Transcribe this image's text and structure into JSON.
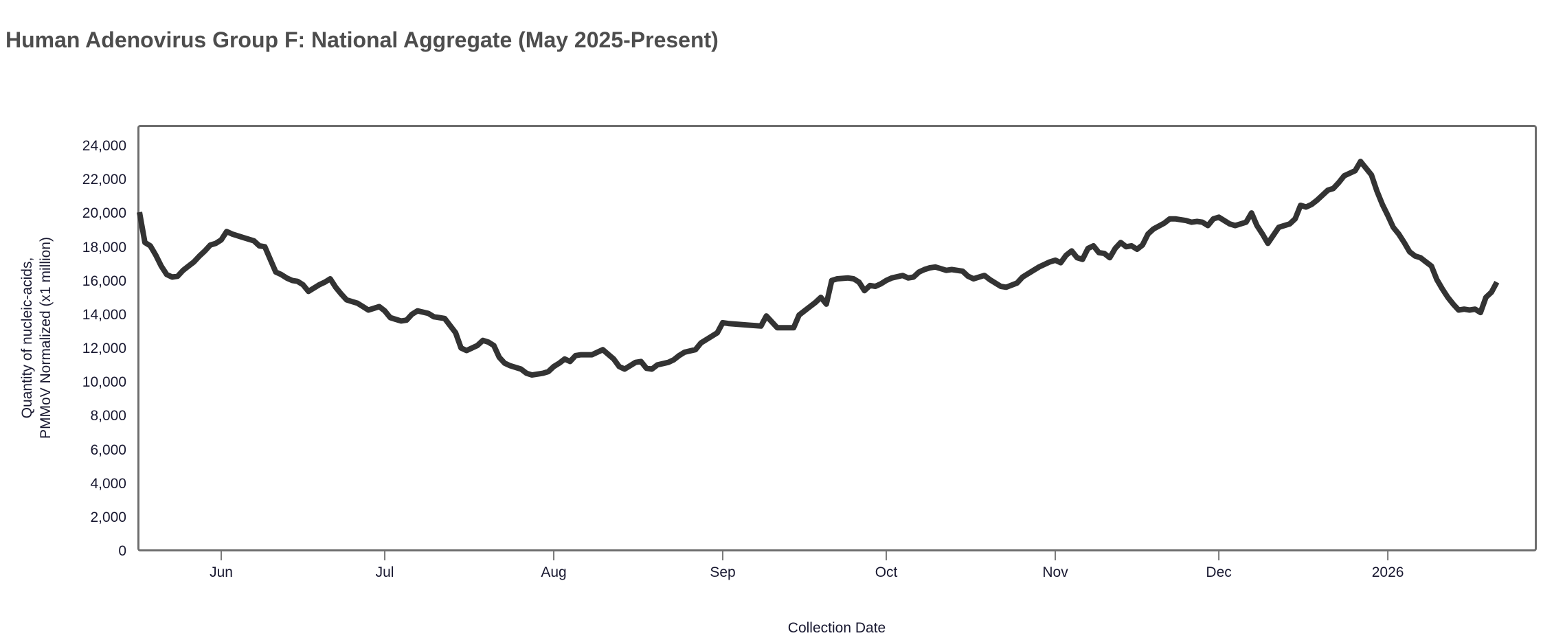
{
  "page": {
    "background_color": "#ffffff",
    "title": "Human Adenovirus Group F: National Aggregate (May 2025-Present)",
    "title_color": "#4d4d4d"
  },
  "chart_data": {
    "type": "line",
    "title": "Human Adenovirus Group F: National Aggregate (May 2025-Present)",
    "xlabel": "Collection Date",
    "ylabel": "Quantity of nucleic-acids, PMMoV Normalized (x1 million)",
    "ylabel_line1": "Quantity of nucleic-acids,",
    "ylabel_line2": "PMMoV Normalized (x1 million)",
    "legend": false,
    "grid": false,
    "ylim": [
      0,
      25300
    ],
    "x_range": [
      "2025-05-17",
      "2026-01-28"
    ],
    "line_color": "#333333",
    "frame_color": "#6e6e6e",
    "tick_text_color": "#181830",
    "tick_mark_color": "#7a7a7a",
    "y_ticks": [
      {
        "label": "0",
        "value": 0
      },
      {
        "label": "2,000",
        "value": 2000
      },
      {
        "label": "4,000",
        "value": 4000
      },
      {
        "label": "6,000",
        "value": 6000
      },
      {
        "label": "8,000",
        "value": 8000
      },
      {
        "label": "10,000",
        "value": 10000
      },
      {
        "label": "12,000",
        "value": 12000
      },
      {
        "label": "14,000",
        "value": 14000
      },
      {
        "label": "16,000",
        "value": 16000
      },
      {
        "label": "18,000",
        "value": 18000
      },
      {
        "label": "20,000",
        "value": 20000
      },
      {
        "label": "22,000",
        "value": 22000
      },
      {
        "label": "24,000",
        "value": 24000
      }
    ],
    "x_ticks": [
      {
        "label": "Jun",
        "date": "2025-06-01"
      },
      {
        "label": "Jul",
        "date": "2025-07-01"
      },
      {
        "label": "Aug",
        "date": "2025-08-01"
      },
      {
        "label": "Sep",
        "date": "2025-09-01"
      },
      {
        "label": "Oct",
        "date": "2025-10-01"
      },
      {
        "label": "Nov",
        "date": "2025-11-01"
      },
      {
        "label": "Dec",
        "date": "2025-12-01"
      },
      {
        "label": "2026",
        "date": "2026-01-01"
      }
    ],
    "series": [
      {
        "name": "National Aggregate",
        "points": [
          [
            "2025-05-17",
            20100
          ],
          [
            "2025-05-18",
            18300
          ],
          [
            "2025-05-19",
            18100
          ],
          [
            "2025-05-20",
            17550
          ],
          [
            "2025-05-21",
            16900
          ],
          [
            "2025-05-22",
            16400
          ],
          [
            "2025-05-23",
            16250
          ],
          [
            "2025-05-24",
            16300
          ],
          [
            "2025-05-25",
            16650
          ],
          [
            "2025-05-26",
            16900
          ],
          [
            "2025-05-27",
            17150
          ],
          [
            "2025-05-28",
            17500
          ],
          [
            "2025-05-29",
            17800
          ],
          [
            "2025-05-30",
            18150
          ],
          [
            "2025-05-31",
            18250
          ],
          [
            "2025-06-01",
            18450
          ],
          [
            "2025-06-02",
            18950
          ],
          [
            "2025-06-03",
            18800
          ],
          [
            "2025-06-04",
            18700
          ],
          [
            "2025-06-05",
            18600
          ],
          [
            "2025-06-07",
            18400
          ],
          [
            "2025-06-08",
            18100
          ],
          [
            "2025-06-09",
            18050
          ],
          [
            "2025-06-10",
            17300
          ],
          [
            "2025-06-11",
            16550
          ],
          [
            "2025-06-12",
            16400
          ],
          [
            "2025-06-13",
            16200
          ],
          [
            "2025-06-14",
            16050
          ],
          [
            "2025-06-15",
            16000
          ],
          [
            "2025-06-16",
            15800
          ],
          [
            "2025-06-17",
            15400
          ],
          [
            "2025-06-18",
            15600
          ],
          [
            "2025-06-19",
            15800
          ],
          [
            "2025-06-20",
            15950
          ],
          [
            "2025-06-21",
            16150
          ],
          [
            "2025-06-22",
            15650
          ],
          [
            "2025-06-23",
            15250
          ],
          [
            "2025-06-24",
            14900
          ],
          [
            "2025-06-26",
            14700
          ],
          [
            "2025-06-27",
            14500
          ],
          [
            "2025-06-28",
            14300
          ],
          [
            "2025-06-30",
            14500
          ],
          [
            "2025-07-01",
            14250
          ],
          [
            "2025-07-02",
            13850
          ],
          [
            "2025-07-03",
            13750
          ],
          [
            "2025-07-04",
            13650
          ],
          [
            "2025-07-05",
            13700
          ],
          [
            "2025-07-06",
            14050
          ],
          [
            "2025-07-07",
            14250
          ],
          [
            "2025-07-09",
            14100
          ],
          [
            "2025-07-10",
            13900
          ],
          [
            "2025-07-11",
            13850
          ],
          [
            "2025-07-12",
            13800
          ],
          [
            "2025-07-14",
            12950
          ],
          [
            "2025-07-15",
            12050
          ],
          [
            "2025-07-16",
            11900
          ],
          [
            "2025-07-18",
            12200
          ],
          [
            "2025-07-19",
            12500
          ],
          [
            "2025-07-20",
            12400
          ],
          [
            "2025-07-21",
            12200
          ],
          [
            "2025-07-22",
            11500
          ],
          [
            "2025-07-23",
            11150
          ],
          [
            "2025-07-24",
            11000
          ],
          [
            "2025-07-26",
            10800
          ],
          [
            "2025-07-27",
            10550
          ],
          [
            "2025-07-28",
            10450
          ],
          [
            "2025-07-30",
            10550
          ],
          [
            "2025-07-31",
            10650
          ],
          [
            "2025-08-01",
            10950
          ],
          [
            "2025-08-02",
            11150
          ],
          [
            "2025-08-03",
            11400
          ],
          [
            "2025-08-04",
            11250
          ],
          [
            "2025-08-05",
            11600
          ],
          [
            "2025-08-06",
            11650
          ],
          [
            "2025-08-08",
            11650
          ],
          [
            "2025-08-10",
            11950
          ],
          [
            "2025-08-12",
            11400
          ],
          [
            "2025-08-13",
            10950
          ],
          [
            "2025-08-14",
            10800
          ],
          [
            "2025-08-16",
            11200
          ],
          [
            "2025-08-17",
            11250
          ],
          [
            "2025-08-18",
            10850
          ],
          [
            "2025-08-19",
            10800
          ],
          [
            "2025-08-20",
            11050
          ],
          [
            "2025-08-22",
            11200
          ],
          [
            "2025-08-23",
            11350
          ],
          [
            "2025-08-24",
            11600
          ],
          [
            "2025-08-25",
            11800
          ],
          [
            "2025-08-27",
            11950
          ],
          [
            "2025-08-28",
            12350
          ],
          [
            "2025-08-31",
            12950
          ],
          [
            "2025-09-01",
            13550
          ],
          [
            "2025-09-02",
            13500
          ],
          [
            "2025-09-04",
            13450
          ],
          [
            "2025-09-06",
            13400
          ],
          [
            "2025-09-08",
            13350
          ],
          [
            "2025-09-09",
            13950
          ],
          [
            "2025-09-11",
            13250
          ],
          [
            "2025-09-14",
            13250
          ],
          [
            "2025-09-15",
            14000
          ],
          [
            "2025-09-16",
            14250
          ],
          [
            "2025-09-17",
            14500
          ],
          [
            "2025-09-18",
            14750
          ],
          [
            "2025-09-19",
            15050
          ],
          [
            "2025-09-20",
            14650
          ],
          [
            "2025-09-21",
            16050
          ],
          [
            "2025-09-22",
            16150
          ],
          [
            "2025-09-24",
            16200
          ],
          [
            "2025-09-25",
            16150
          ],
          [
            "2025-09-26",
            15950
          ],
          [
            "2025-09-27",
            15450
          ],
          [
            "2025-09-28",
            15750
          ],
          [
            "2025-09-29",
            15700
          ],
          [
            "2025-09-30",
            15850
          ],
          [
            "2025-10-01",
            16050
          ],
          [
            "2025-10-02",
            16200
          ],
          [
            "2025-10-04",
            16350
          ],
          [
            "2025-10-05",
            16200
          ],
          [
            "2025-10-06",
            16250
          ],
          [
            "2025-10-07",
            16550
          ],
          [
            "2025-10-08",
            16700
          ],
          [
            "2025-10-09",
            16800
          ],
          [
            "2025-10-10",
            16850
          ],
          [
            "2025-10-11",
            16750
          ],
          [
            "2025-10-12",
            16650
          ],
          [
            "2025-10-13",
            16700
          ],
          [
            "2025-10-15",
            16600
          ],
          [
            "2025-10-16",
            16300
          ],
          [
            "2025-10-17",
            16150
          ],
          [
            "2025-10-19",
            16350
          ],
          [
            "2025-10-20",
            16100
          ],
          [
            "2025-10-22",
            15700
          ],
          [
            "2025-10-23",
            15650
          ],
          [
            "2025-10-25",
            15900
          ],
          [
            "2025-10-26",
            16250
          ],
          [
            "2025-10-28",
            16650
          ],
          [
            "2025-10-29",
            16850
          ],
          [
            "2025-10-31",
            17150
          ],
          [
            "2025-11-01",
            17250
          ],
          [
            "2025-11-02",
            17100
          ],
          [
            "2025-11-03",
            17550
          ],
          [
            "2025-11-04",
            17800
          ],
          [
            "2025-11-05",
            17400
          ],
          [
            "2025-11-06",
            17300
          ],
          [
            "2025-11-07",
            17950
          ],
          [
            "2025-11-08",
            18100
          ],
          [
            "2025-11-09",
            17700
          ],
          [
            "2025-11-10",
            17650
          ],
          [
            "2025-11-11",
            17400
          ],
          [
            "2025-11-12",
            17950
          ],
          [
            "2025-11-13",
            18300
          ],
          [
            "2025-11-14",
            18050
          ],
          [
            "2025-11-15",
            18100
          ],
          [
            "2025-11-16",
            17900
          ],
          [
            "2025-11-17",
            18150
          ],
          [
            "2025-11-18",
            18800
          ],
          [
            "2025-11-19",
            19100
          ],
          [
            "2025-11-21",
            19450
          ],
          [
            "2025-11-22",
            19700
          ],
          [
            "2025-11-23",
            19700
          ],
          [
            "2025-11-25",
            19600
          ],
          [
            "2025-11-26",
            19500
          ],
          [
            "2025-11-27",
            19550
          ],
          [
            "2025-11-28",
            19500
          ],
          [
            "2025-11-29",
            19300
          ],
          [
            "2025-11-30",
            19700
          ],
          [
            "2025-12-01",
            19800
          ],
          [
            "2025-12-02",
            19600
          ],
          [
            "2025-12-03",
            19400
          ],
          [
            "2025-12-04",
            19300
          ],
          [
            "2025-12-05",
            19400
          ],
          [
            "2025-12-06",
            19500
          ],
          [
            "2025-12-07",
            20050
          ],
          [
            "2025-12-08",
            19300
          ],
          [
            "2025-12-09",
            18800
          ],
          [
            "2025-12-10",
            18250
          ],
          [
            "2025-12-12",
            19200
          ],
          [
            "2025-12-14",
            19400
          ],
          [
            "2025-12-15",
            19700
          ],
          [
            "2025-12-16",
            20500
          ],
          [
            "2025-12-17",
            20400
          ],
          [
            "2025-12-18",
            20550
          ],
          [
            "2025-12-19",
            20800
          ],
          [
            "2025-12-20",
            21100
          ],
          [
            "2025-12-21",
            21400
          ],
          [
            "2025-12-22",
            21500
          ],
          [
            "2025-12-23",
            21850
          ],
          [
            "2025-12-24",
            22250
          ],
          [
            "2025-12-26",
            22550
          ],
          [
            "2025-12-27",
            23100
          ],
          [
            "2025-12-29",
            22300
          ],
          [
            "2025-12-30",
            21350
          ],
          [
            "2025-12-31",
            20550
          ],
          [
            "2026-01-01",
            19900
          ],
          [
            "2026-01-02",
            19200
          ],
          [
            "2026-01-03",
            18800
          ],
          [
            "2026-01-04",
            18300
          ],
          [
            "2026-01-05",
            17750
          ],
          [
            "2026-01-06",
            17500
          ],
          [
            "2026-01-07",
            17400
          ],
          [
            "2026-01-08",
            17150
          ],
          [
            "2026-01-09",
            16900
          ],
          [
            "2026-01-10",
            16100
          ],
          [
            "2026-01-11",
            15550
          ],
          [
            "2026-01-12",
            15050
          ],
          [
            "2026-01-13",
            14650
          ],
          [
            "2026-01-14",
            14300
          ],
          [
            "2026-01-15",
            14350
          ],
          [
            "2026-01-16",
            14300
          ],
          [
            "2026-01-17",
            14350
          ],
          [
            "2026-01-18",
            14150
          ],
          [
            "2026-01-19",
            15050
          ],
          [
            "2026-01-20",
            15350
          ],
          [
            "2026-01-21",
            15950
          ]
        ]
      }
    ]
  }
}
